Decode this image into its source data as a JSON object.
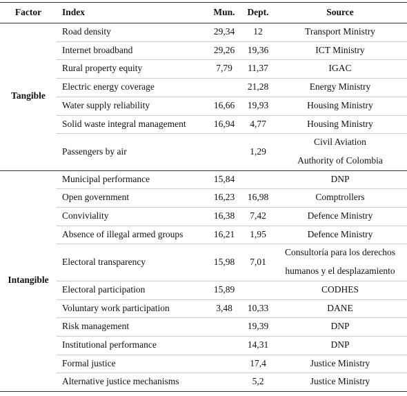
{
  "header": {
    "factor": "Factor",
    "index": "Index",
    "mun": "Mun.",
    "dept": "Dept.",
    "source": "Source"
  },
  "groups": [
    {
      "factor": "Tangible",
      "rows": [
        {
          "index": "Road density",
          "mun": "29,34",
          "dept": "12",
          "source": [
            "Transport Ministry"
          ]
        },
        {
          "index": "Internet broadband",
          "mun": "29,26",
          "dept": "19,36",
          "source": [
            "ICT Ministry"
          ]
        },
        {
          "index": "Rural property equity",
          "mun": "7,79",
          "dept": "11,37",
          "source": [
            "IGAC"
          ]
        },
        {
          "index": "Electric energy coverage",
          "mun": null,
          "dept": "21,28",
          "source": [
            "Energy Ministry"
          ]
        },
        {
          "index": "Water supply reliability",
          "mun": "16,66",
          "dept": "19,93",
          "source": [
            "Housing Ministry"
          ]
        },
        {
          "index": "Solid waste integral management",
          "mun": "16,94",
          "dept": "4,77",
          "source": [
            "Housing Ministry"
          ]
        },
        {
          "index": "Passengers by air",
          "mun": null,
          "dept": "1,29",
          "source": [
            "Civil Aviation",
            "Authority of Colombia"
          ]
        }
      ]
    },
    {
      "factor": "Intangible",
      "rows": [
        {
          "index": "Municipal performance",
          "mun": "15,84",
          "dept": null,
          "source": [
            "DNP"
          ]
        },
        {
          "index": "Open government",
          "mun": "16,23",
          "dept": "16,98",
          "source": [
            "Comptrollers"
          ]
        },
        {
          "index": "Conviviality",
          "mun": "16,38",
          "dept": "7,42",
          "source": [
            "Defence Ministry"
          ]
        },
        {
          "index": "Absence of illegal armed groups",
          "mun": "16,21",
          "dept": "1,95",
          "source": [
            "Defence Ministry"
          ]
        },
        {
          "index": "Electoral transparency",
          "mun": "15,98",
          "dept": "7,01",
          "source": [
            "Consultoría para los derechos",
            "humanos y el desplazamiento"
          ]
        },
        {
          "index": "Electoral participation",
          "mun": "15,89",
          "dept": null,
          "source": [
            "CODHES"
          ]
        },
        {
          "index": "Voluntary work participation",
          "mun": "3,48",
          "dept": "10,33",
          "source": [
            "DANE"
          ]
        },
        {
          "index": "Risk management",
          "mun": null,
          "dept": "19,39",
          "source": [
            "DNP"
          ]
        },
        {
          "index": "Institutional performance",
          "mun": null,
          "dept": "14,31",
          "source": [
            "DNP"
          ]
        },
        {
          "index": "Formal justice",
          "mun": null,
          "dept": "17,4",
          "source": [
            "Justice Ministry"
          ]
        },
        {
          "index": "Alternative justice mechanisms",
          "mun": null,
          "dept": "5,2",
          "source": [
            "Justice Ministry"
          ]
        }
      ]
    }
  ]
}
